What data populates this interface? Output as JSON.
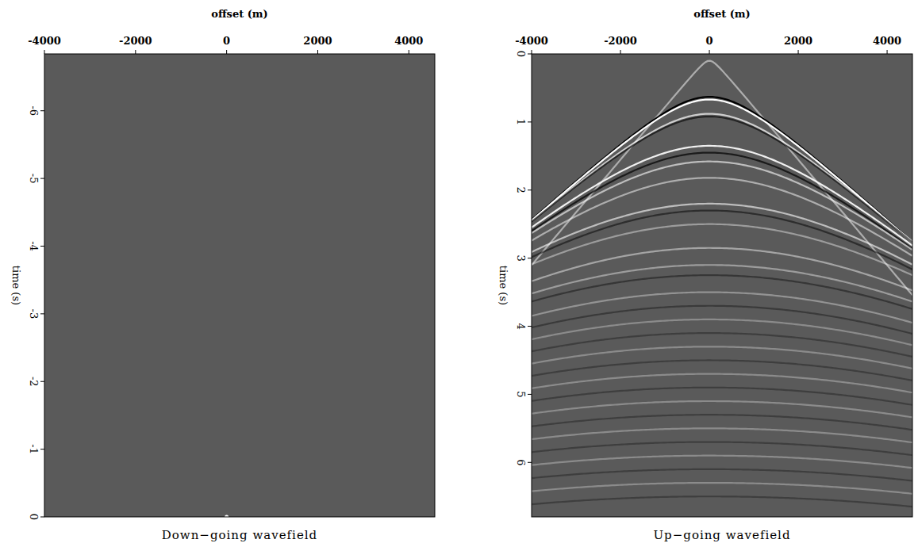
{
  "chart_data": [
    {
      "type": "seismic",
      "title": "Down−going wavefield",
      "xlabel": "offset (m)",
      "ylabel": "time (s)",
      "xlim": [
        -4000,
        4570
      ],
      "ylim": [
        -6.84,
        0
      ],
      "xticks": [
        -4000,
        -2000,
        0,
        2000,
        4000
      ],
      "yticks": [
        -6,
        -5,
        -4,
        -3,
        -2,
        -1,
        0
      ],
      "source_point": {
        "x": 0,
        "t": 0
      }
    },
    {
      "type": "seismic",
      "title": "Up−going wavefield",
      "xlabel": "offset (m)",
      "ylabel": "time (s)",
      "xlim": [
        -4000,
        4570
      ],
      "ylim": [
        0,
        6.8
      ],
      "xticks": [
        -4000,
        -2000,
        0,
        2000,
        4000
      ],
      "yticks": [
        0,
        1,
        2,
        3,
        4,
        5,
        6
      ],
      "events": [
        {
          "t0": 0.1,
          "velocity": 1290,
          "amplitude": 0.5
        },
        {
          "t0": 0.63,
          "velocity": 1700,
          "amplitude": -1.0
        },
        {
          "t0": 0.67,
          "velocity": 1700,
          "amplitude": 1.0
        },
        {
          "t0": 0.88,
          "velocity": 1750,
          "amplitude": 0.7
        },
        {
          "t0": 0.92,
          "velocity": 1750,
          "amplitude": -0.6
        },
        {
          "t0": 1.35,
          "velocity": 1850,
          "amplitude": 0.9
        },
        {
          "t0": 1.45,
          "velocity": 1850,
          "amplitude": -0.7
        },
        {
          "t0": 1.58,
          "velocity": 1900,
          "amplitude": 0.6
        },
        {
          "t0": 1.82,
          "velocity": 1950,
          "amplitude": 0.5
        },
        {
          "t0": 2.2,
          "velocity": 2100,
          "amplitude": 0.6
        },
        {
          "t0": 2.3,
          "velocity": 2100,
          "amplitude": -0.5
        },
        {
          "t0": 2.5,
          "velocity": 2200,
          "amplitude": 0.4
        },
        {
          "t0": 2.85,
          "velocity": 2300,
          "amplitude": 0.45
        },
        {
          "t0": 3.1,
          "velocity": 2400,
          "amplitude": 0.4
        },
        {
          "t0": 3.25,
          "velocity": 2450,
          "amplitude": -0.4
        },
        {
          "t0": 3.5,
          "velocity": 2500,
          "amplitude": 0.35
        },
        {
          "t0": 3.7,
          "velocity": 2550,
          "amplitude": -0.35
        },
        {
          "t0": 3.9,
          "velocity": 2600,
          "amplitude": 0.3
        },
        {
          "t0": 4.1,
          "velocity": 2650,
          "amplitude": -0.3
        },
        {
          "t0": 4.3,
          "velocity": 2700,
          "amplitude": 0.3
        },
        {
          "t0": 4.5,
          "velocity": 2750,
          "amplitude": -0.3
        },
        {
          "t0": 4.7,
          "velocity": 2800,
          "amplitude": 0.3
        },
        {
          "t0": 4.9,
          "velocity": 2850,
          "amplitude": -0.3
        },
        {
          "t0": 5.1,
          "velocity": 2900,
          "amplitude": 0.3
        },
        {
          "t0": 5.3,
          "velocity": 2950,
          "amplitude": -0.3
        },
        {
          "t0": 5.5,
          "velocity": 3000,
          "amplitude": 0.3
        },
        {
          "t0": 5.7,
          "velocity": 3050,
          "amplitude": -0.3
        },
        {
          "t0": 5.9,
          "velocity": 3100,
          "amplitude": 0.3
        },
        {
          "t0": 6.1,
          "velocity": 3150,
          "amplitude": -0.3
        },
        {
          "t0": 6.3,
          "velocity": 3200,
          "amplitude": 0.3
        },
        {
          "t0": 6.5,
          "velocity": 3250,
          "amplitude": -0.3
        }
      ]
    }
  ]
}
